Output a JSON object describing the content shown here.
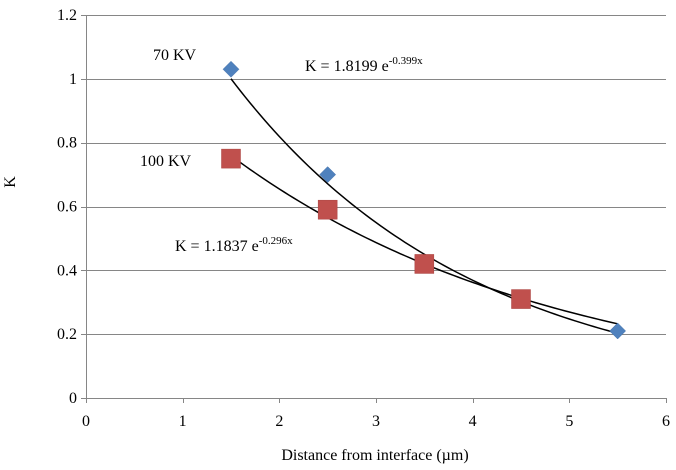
{
  "chart_data": {
    "type": "scatter",
    "title": "",
    "xlabel": "Distance from interface (µm)",
    "ylabel": "K",
    "xlim": [
      0,
      6
    ],
    "ylim": [
      0,
      1.2
    ],
    "xticks": [
      0,
      1,
      2,
      3,
      4,
      5,
      6
    ],
    "yticks": [
      0,
      0.2,
      0.4,
      0.6,
      0.8,
      1.0,
      1.2
    ],
    "xtick_labels": [
      "0",
      "1",
      "2",
      "3",
      "4",
      "5",
      "6"
    ],
    "ytick_labels": [
      "0",
      "0.2",
      "0.4",
      "0.6",
      "0.8",
      "1",
      "1.2"
    ],
    "grid": "horizontal",
    "legend": "none",
    "series": [
      {
        "name": "70 KV",
        "marker": "diamond",
        "color": "#4F81BD",
        "x": [
          1.5,
          2.5,
          5.5
        ],
        "y": [
          1.03,
          0.7,
          0.21
        ],
        "fit": {
          "type": "exponential",
          "a": 1.8199,
          "b": -0.399,
          "x_range": [
            1.5,
            5.5
          ],
          "equation_prefix": "K = 1.8199 e",
          "equation_exp": "-0.399x"
        }
      },
      {
        "name": "100 KV",
        "marker": "square",
        "color": "#C0504D",
        "x": [
          1.5,
          2.5,
          3.5,
          4.5
        ],
        "y": [
          0.75,
          0.59,
          0.42,
          0.31
        ],
        "fit": {
          "type": "exponential",
          "a": 1.1837,
          "b": -0.296,
          "x_range": [
            1.5,
            5.5
          ],
          "equation_prefix": "K = 1.1837 e",
          "equation_exp": "-0.296x"
        }
      }
    ]
  }
}
